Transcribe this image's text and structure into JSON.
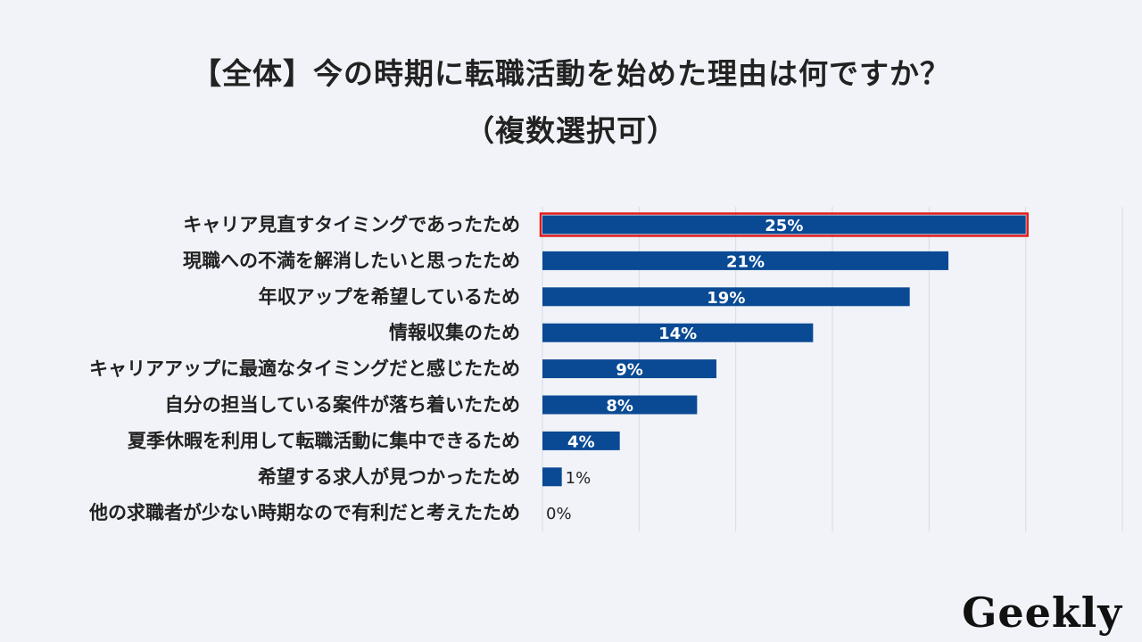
{
  "title": {
    "line1": "【全体】今の時期に転職活動を始めた理由は何ですか？",
    "line2": "（複数選択可）"
  },
  "logo": "Geekly",
  "colors": {
    "bar": "#0a4a94",
    "highlight_border": "#e21b1b",
    "gridline": "#d8dbe2",
    "background": "#f1f3f8"
  },
  "chart_data": {
    "type": "bar",
    "orientation": "horizontal",
    "categories": [
      "キャリア見直すタイミングであったため",
      "現職への不満を解消したいと思ったため",
      "年収アップを希望しているため",
      "情報収集のため",
      "キャリアアップに最適なタイミングだと感じたため",
      "自分の担当している案件が落ち着いたため",
      "夏季休暇を利用して転職活動に集中できるため",
      "希望する求人が見つかったため",
      "他の求職者が少ない時期なので有利だと考えたため"
    ],
    "values": [
      25,
      21,
      19,
      14,
      9,
      8,
      4,
      1,
      0
    ],
    "value_labels": [
      "25%",
      "21%",
      "19%",
      "14%",
      "9%",
      "8%",
      "4%",
      "1%",
      "0%"
    ],
    "unit": "%",
    "xlim": [
      0,
      30
    ],
    "grid": true,
    "highlighted_index": 0
  }
}
